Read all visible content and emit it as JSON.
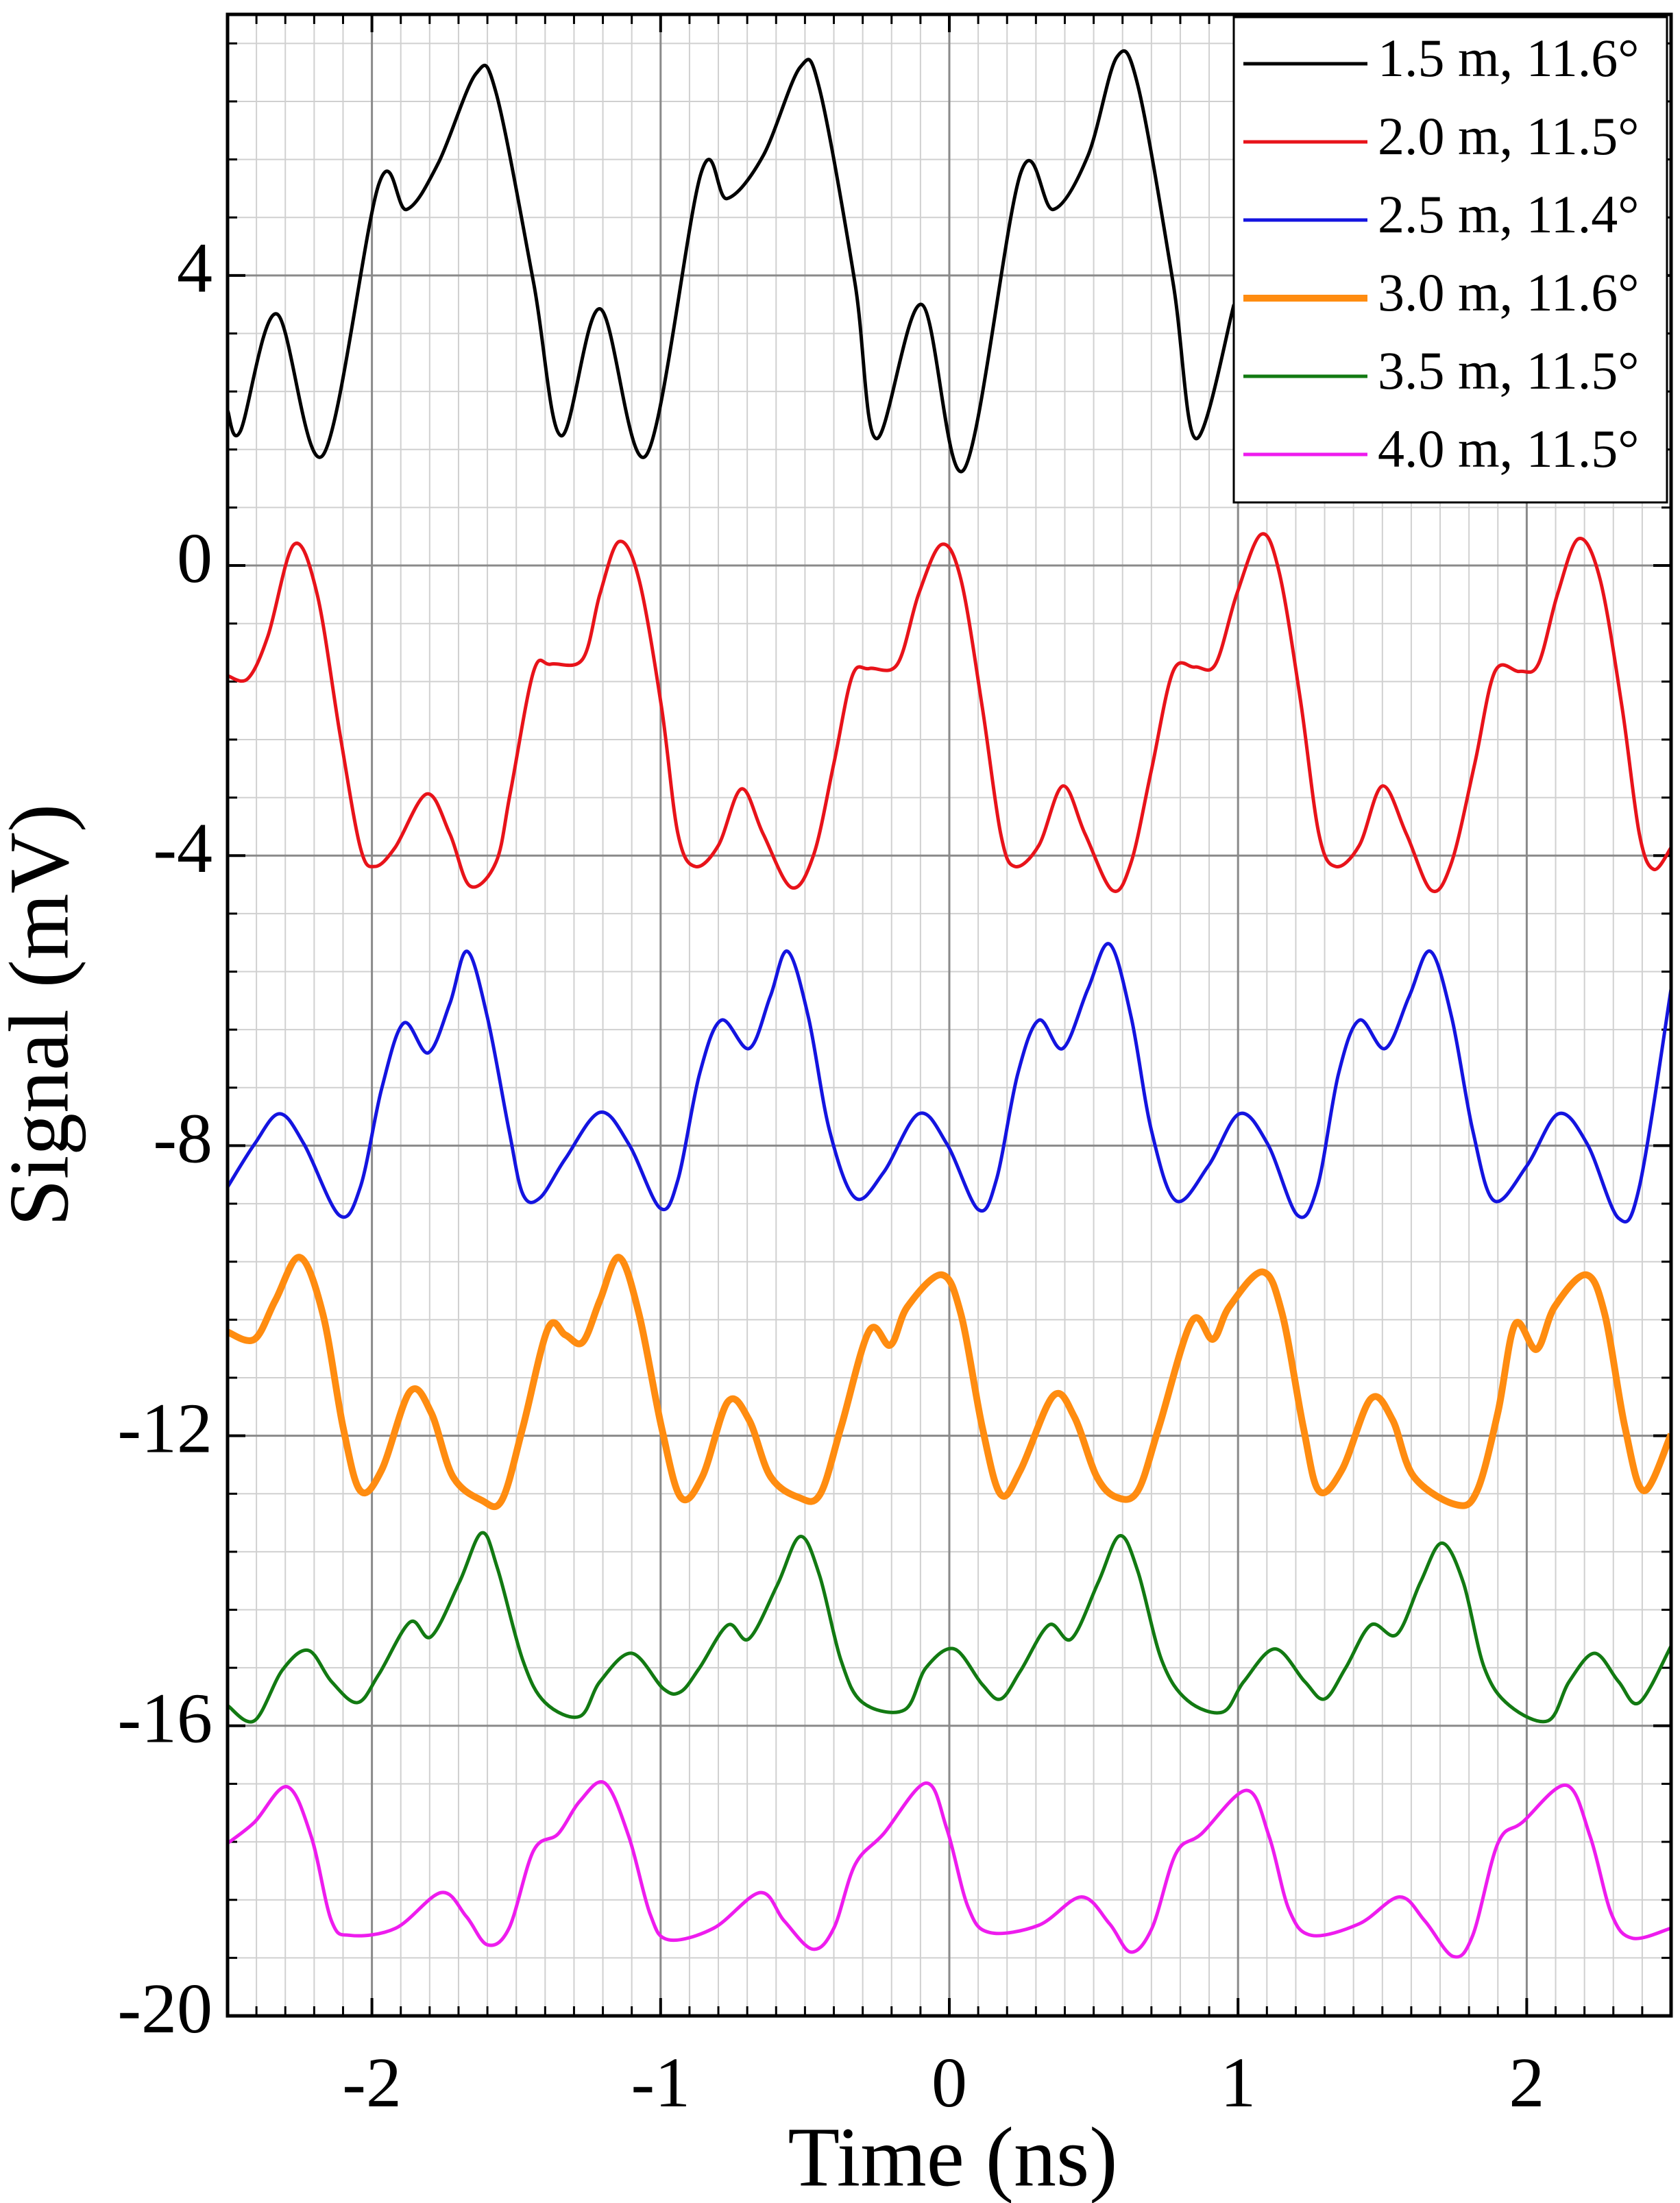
{
  "chart_data": {
    "type": "line",
    "xlabel": "Time (ns)",
    "ylabel": "Signal (mV)",
    "xlim": [
      -2.5,
      2.5
    ],
    "ylim": [
      -20,
      7.6
    ],
    "xticks": [
      -2,
      -1,
      0,
      1,
      2
    ],
    "yticks": [
      -20,
      -16,
      -12,
      -8,
      -4,
      0,
      4
    ],
    "grid": true,
    "legend": "upper right",
    "series": [
      {
        "name": "1.5 m, 11.6°",
        "color": "#000000",
        "linewidth": 5,
        "x": [
          -2.5,
          -2.456,
          -2.33,
          -2.17,
          -1.976,
          -1.88,
          -1.77,
          -1.64,
          -1.57,
          -1.44,
          -1.345,
          -1.21,
          -1.05,
          -0.86,
          -0.77,
          -0.645,
          -0.517,
          -0.45,
          -0.327,
          -0.253,
          -0.096,
          0.05,
          0.247,
          0.36,
          0.48,
          0.58,
          0.653,
          0.775,
          0.854,
          0.986
        ],
        "values": [
          2.14,
          1.85,
          3.47,
          1.52,
          5.26,
          4.91,
          5.55,
          6.78,
          6.52,
          3.9,
          1.79,
          3.54,
          1.52,
          5.41,
          5.06,
          5.65,
          6.87,
          6.58,
          3.9,
          1.75,
          3.6,
          1.32,
          5.41,
          4.91,
          5.65,
          7.01,
          6.62,
          3.9,
          1.75,
          3.6
        ]
      },
      {
        "name": "2.0 m, 11.5°",
        "color": "#e8131a",
        "linewidth": 5,
        "x": [
          -2.5,
          -2.43,
          -2.36,
          -2.27,
          -2.19,
          -2.11,
          -2.04,
          -1.99,
          -1.92,
          -1.81,
          -1.73,
          -1.66,
          -1.57,
          -1.52,
          -1.44,
          -1.38,
          -1.27,
          -1.21,
          -1.144,
          -1.075,
          -0.997,
          -0.94,
          -0.88,
          -0.8,
          -0.72,
          -0.645,
          -0.547,
          -0.47,
          -0.4,
          -0.336,
          -0.277,
          -0.18,
          -0.106,
          -0.027,
          0.04,
          0.114,
          0.178,
          0.227,
          0.31,
          0.393,
          0.47,
          0.565,
          0.63,
          0.7,
          0.775,
          0.85,
          0.922,
          0.996,
          1.08,
          1.143,
          1.216,
          1.28,
          1.338,
          1.42,
          1.5,
          1.583,
          1.67,
          1.74,
          1.82,
          1.89,
          1.975,
          2.04,
          2.107,
          2.18,
          2.254,
          2.33,
          2.39,
          2.44,
          2.5
        ],
        "values": [
          -1.52,
          -1.56,
          -0.97,
          0.29,
          -0.39,
          -2.34,
          -3.89,
          -4.15,
          -3.89,
          -3.15,
          -3.7,
          -4.42,
          -4.09,
          -3.12,
          -1.46,
          -1.36,
          -1.29,
          -0.39,
          0.33,
          -0.19,
          -1.95,
          -3.7,
          -4.15,
          -3.86,
          -3.08,
          -3.7,
          -4.44,
          -3.99,
          -2.73,
          -1.52,
          -1.42,
          -1.36,
          -0.39,
          0.29,
          -0.19,
          -1.95,
          -3.7,
          -4.15,
          -3.86,
          -3.04,
          -3.7,
          -4.48,
          -4.09,
          -2.82,
          -1.46,
          -1.4,
          -1.36,
          -0.39,
          0.43,
          -0.1,
          -1.85,
          -3.7,
          -4.15,
          -3.86,
          -3.04,
          -3.7,
          -4.48,
          -4.09,
          -2.73,
          -1.46,
          -1.46,
          -1.36,
          -0.39,
          0.37,
          -0.19,
          -1.95,
          -3.7,
          -4.19,
          -3.89
        ]
      },
      {
        "name": "2.5 m, 11.4°",
        "color": "#1414e0",
        "linewidth": 5,
        "x": [
          -2.5,
          -2.407,
          -2.32,
          -2.235,
          -2.113,
          -2.04,
          -1.966,
          -1.89,
          -1.805,
          -1.73,
          -1.67,
          -1.6,
          -1.525,
          -1.477,
          -1.418,
          -1.33,
          -1.21,
          -1.11,
          -1.002,
          -0.94,
          -0.865,
          -0.79,
          -0.693,
          -0.62,
          -0.56,
          -0.488,
          -0.415,
          -0.326,
          -0.228,
          -0.106,
          -0.008,
          0.1,
          0.163,
          0.237,
          0.31,
          0.393,
          0.48,
          0.555,
          0.63,
          0.7,
          0.785,
          0.897,
          1.005,
          1.103,
          1.206,
          1.275,
          1.348,
          1.42,
          1.51,
          1.593,
          1.666,
          1.74,
          1.813,
          1.887,
          2.0,
          2.11,
          2.21,
          2.318,
          2.39,
          2.5
        ],
        "values": [
          -8.57,
          -7.98,
          -7.56,
          -7.98,
          -8.96,
          -8.57,
          -7.21,
          -6.31,
          -6.72,
          -6.04,
          -5.32,
          -6.23,
          -7.79,
          -8.67,
          -8.72,
          -8.18,
          -7.54,
          -7.98,
          -8.86,
          -8.47,
          -7.01,
          -6.27,
          -6.66,
          -5.94,
          -5.32,
          -6.23,
          -7.79,
          -8.72,
          -8.37,
          -7.56,
          -7.98,
          -8.88,
          -8.47,
          -7.01,
          -6.27,
          -6.66,
          -5.84,
          -5.22,
          -6.23,
          -7.79,
          -8.76,
          -8.28,
          -7.56,
          -7.98,
          -8.96,
          -8.57,
          -7.01,
          -6.27,
          -6.66,
          -5.94,
          -5.32,
          -6.23,
          -7.79,
          -8.76,
          -8.28,
          -7.56,
          -7.98,
          -9.0,
          -8.57,
          -5.84
        ]
      },
      {
        "name": "3.0 m, 11.6°",
        "color": "#ff8c10",
        "linewidth": 10,
        "x": [
          -2.5,
          -2.407,
          -2.334,
          -2.25,
          -2.17,
          -2.1,
          -2.04,
          -1.966,
          -1.868,
          -1.795,
          -1.72,
          -1.62,
          -1.55,
          -1.477,
          -1.39,
          -1.33,
          -1.27,
          -1.21,
          -1.144,
          -1.075,
          -0.997,
          -0.93,
          -0.855,
          -0.767,
          -0.694,
          -0.62,
          -0.522,
          -0.448,
          -0.375,
          -0.277,
          -0.204,
          -0.145,
          -0.027,
          0.04,
          0.114,
          0.178,
          0.247,
          0.36,
          0.433,
          0.51,
          0.58,
          0.653,
          0.726,
          0.84,
          0.913,
          0.97,
          1.085,
          1.153,
          1.226,
          1.28,
          1.36,
          1.46,
          1.535,
          1.608,
          1.755,
          1.828,
          1.9,
          1.96,
          2.034,
          2.097,
          2.205,
          2.27,
          2.34,
          2.406,
          2.5
        ],
        "values": [
          -10.57,
          -10.67,
          -10.13,
          -9.54,
          -10.32,
          -11.88,
          -12.76,
          -12.47,
          -11.39,
          -11.68,
          -12.56,
          -12.89,
          -12.89,
          -11.88,
          -10.52,
          -10.61,
          -10.71,
          -10.13,
          -9.54,
          -10.32,
          -11.88,
          -12.85,
          -12.56,
          -11.53,
          -11.78,
          -12.56,
          -12.85,
          -12.81,
          -11.88,
          -10.55,
          -10.75,
          -10.22,
          -9.78,
          -10.32,
          -11.88,
          -12.81,
          -12.47,
          -11.45,
          -11.74,
          -12.56,
          -12.85,
          -12.76,
          -11.88,
          -10.42,
          -10.67,
          -10.22,
          -9.74,
          -10.32,
          -11.88,
          -12.76,
          -12.47,
          -11.49,
          -11.78,
          -12.56,
          -12.95,
          -12.76,
          -11.68,
          -10.46,
          -10.81,
          -10.22,
          -9.78,
          -10.32,
          -11.88,
          -12.76,
          -11.98
        ]
      },
      {
        "name": "3.5 m, 11.5°",
        "color": "#127a12",
        "linewidth": 5,
        "x": [
          -2.5,
          -2.407,
          -2.31,
          -2.22,
          -2.14,
          -2.05,
          -1.976,
          -1.868,
          -1.795,
          -1.697,
          -1.62,
          -1.565,
          -1.477,
          -1.4,
          -1.28,
          -1.21,
          -1.1,
          -0.99,
          -0.93,
          -0.865,
          -0.767,
          -0.694,
          -0.596,
          -0.517,
          -0.45,
          -0.375,
          -0.3,
          -0.155,
          -0.081,
          0.017,
          0.114,
          0.178,
          0.247,
          0.345,
          0.423,
          0.516,
          0.59,
          0.653,
          0.736,
          0.825,
          0.947,
          1.02,
          1.128,
          1.231,
          1.3,
          1.373,
          1.46,
          1.55,
          1.632,
          1.706,
          1.78,
          1.853,
          1.94,
          2.074,
          2.147,
          2.235,
          2.318,
          2.39,
          2.5
        ],
        "values": [
          -15.72,
          -15.93,
          -15.23,
          -14.96,
          -15.39,
          -15.68,
          -15.29,
          -14.57,
          -14.77,
          -14.02,
          -13.34,
          -13.83,
          -15.1,
          -15.68,
          -15.87,
          -15.39,
          -15.0,
          -15.49,
          -15.53,
          -15.2,
          -14.61,
          -14.8,
          -14.06,
          -13.39,
          -13.92,
          -15.1,
          -15.68,
          -15.78,
          -15.2,
          -14.94,
          -15.43,
          -15.63,
          -15.24,
          -14.61,
          -14.8,
          -14.02,
          -13.38,
          -13.87,
          -15.1,
          -15.65,
          -15.81,
          -15.39,
          -14.94,
          -15.39,
          -15.63,
          -15.2,
          -14.61,
          -14.74,
          -14.02,
          -13.48,
          -14.02,
          -15.2,
          -15.72,
          -15.93,
          -15.39,
          -15.0,
          -15.39,
          -15.68,
          -14.9
        ]
      },
      {
        "name": "4.0 m, 11.5°",
        "color": "#ee1cee",
        "linewidth": 5,
        "x": [
          -2.5,
          -2.407,
          -2.294,
          -2.21,
          -2.14,
          -2.074,
          -1.917,
          -1.76,
          -1.673,
          -1.6,
          -1.525,
          -1.44,
          -1.355,
          -1.28,
          -1.193,
          -1.11,
          -1.036,
          -0.973,
          -0.816,
          -0.655,
          -0.572,
          -0.473,
          -0.4,
          -0.326,
          -0.228,
          -0.081,
          -0.008,
          0.065,
          0.139,
          0.31,
          0.457,
          0.555,
          0.628,
          0.702,
          0.785,
          0.873,
          1.03,
          1.108,
          1.177,
          1.255,
          1.42,
          1.559,
          1.647,
          1.745,
          1.813,
          1.9,
          1.985,
          2.137,
          2.22,
          2.294,
          2.367,
          2.5
        ],
        "values": [
          -17.62,
          -17.33,
          -16.84,
          -17.53,
          -18.69,
          -18.89,
          -18.79,
          -18.3,
          -18.63,
          -19.02,
          -18.79,
          -17.72,
          -17.49,
          -17.04,
          -16.79,
          -17.53,
          -18.6,
          -18.95,
          -18.79,
          -18.3,
          -18.69,
          -19.08,
          -18.79,
          -17.91,
          -17.49,
          -16.79,
          -17.43,
          -18.5,
          -18.85,
          -18.75,
          -18.36,
          -18.73,
          -19.12,
          -18.79,
          -17.76,
          -17.49,
          -16.89,
          -17.53,
          -18.54,
          -18.89,
          -18.73,
          -18.36,
          -18.69,
          -19.18,
          -18.89,
          -17.62,
          -17.33,
          -16.82,
          -17.53,
          -18.6,
          -18.93,
          -18.79
        ]
      }
    ]
  }
}
